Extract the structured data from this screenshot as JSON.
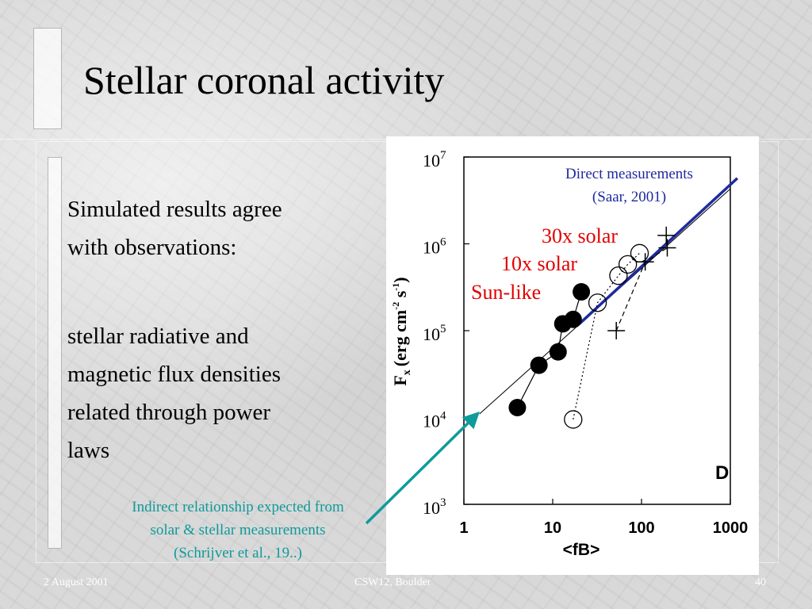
{
  "slide": {
    "title": "Stellar coronal activity",
    "bullet1": [
      "Simulated results agree",
      "with observations:"
    ],
    "bullet2": [
      "stellar radiative and",
      "magnetic flux densities",
      "related through power",
      "laws"
    ],
    "footer_date": "2 August 2001",
    "footer_event": "CSW12, Boulder",
    "footer_page": "40"
  },
  "annotations": {
    "direct": [
      "Direct measurements",
      "(Saar, 2001)"
    ],
    "indirect": [
      "Indirect relationship expected from",
      "solar & stellar measurements",
      "(Schrijver et al., 19..)"
    ],
    "label_30x": "30x solar",
    "label_10x": "10x solar",
    "label_sun": "Sun-like",
    "colors": {
      "blue": "#1e2a9e",
      "red": "#e00000",
      "teal": "#109a9a"
    }
  },
  "chart_data": {
    "type": "scatter",
    "panel_label": "D",
    "xlabel": "<fB>",
    "ylabel_main": "F",
    "ylabel_sub": "x",
    "ylabel_units": "(erg cm",
    "ylabel_exp1": "-2",
    "ylabel_mid": " s",
    "ylabel_exp2": "-1",
    "ylabel_close": ")",
    "xscale": "log",
    "yscale": "log",
    "xlim": [
      1,
      1000
    ],
    "ylim": [
      1000,
      10000000
    ],
    "x_ticks": [
      {
        "value": 1,
        "label": "1"
      },
      {
        "value": 10,
        "label": "10"
      },
      {
        "value": 100,
        "label": "100"
      },
      {
        "value": 1000,
        "label": "1000"
      }
    ],
    "y_ticks": [
      {
        "value": 1000,
        "base": "10",
        "exp": "3"
      },
      {
        "value": 10000,
        "base": "10",
        "exp": "4"
      },
      {
        "value": 100000,
        "base": "10",
        "exp": "5"
      },
      {
        "value": 1000000,
        "base": "10",
        "exp": "6"
      },
      {
        "value": 10000000,
        "base": "10",
        "exp": "7"
      }
    ],
    "series": [
      {
        "marker": "filled-circle",
        "connect": "solid",
        "points": [
          [
            4,
            13000
          ],
          [
            7,
            40000
          ],
          [
            11.5,
            57000
          ],
          [
            13,
            120000
          ],
          [
            17,
            135000
          ],
          [
            21,
            280000
          ]
        ]
      },
      {
        "marker": "open-circle",
        "connect": "dotted",
        "points": [
          [
            17,
            9500
          ],
          [
            32,
            210000
          ],
          [
            55,
            430000
          ],
          [
            70,
            580000
          ],
          [
            95,
            780000
          ]
        ]
      },
      {
        "marker": "plus",
        "connect": "dashed",
        "points": [
          [
            52,
            100000
          ],
          [
            110,
            620000
          ],
          [
            195,
            900000
          ],
          [
            190,
            1250000
          ]
        ]
      }
    ],
    "fit_lines": [
      {
        "style": "thin-black",
        "from": [
          1.5,
          11000
        ],
        "to": [
          1000,
          4300000
        ]
      },
      {
        "style": "thick-blue",
        "from": [
          20,
          120000
        ],
        "to": [
          1200,
          5700000
        ]
      }
    ]
  }
}
